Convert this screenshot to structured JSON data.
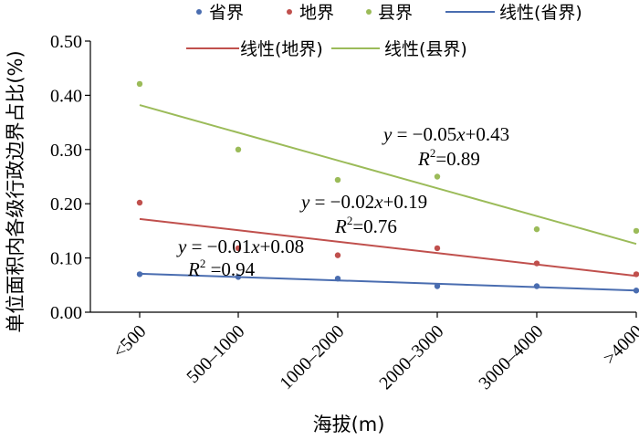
{
  "chart_data": {
    "type": "scatter",
    "title": "",
    "xlabel": "海拔(m)",
    "ylabel": "单位面积内各级行政边界占比(%)",
    "categories": [
      "<500",
      "500–1000",
      "1000–2000",
      "2000–3000",
      "3000–4000",
      ">4000"
    ],
    "y_ticks": [
      "0.00",
      "0.10",
      "0.20",
      "0.30",
      "0.40",
      "0.50"
    ],
    "ylim": [
      0,
      0.5
    ],
    "grid": false,
    "legend_position": "top",
    "series": [
      {
        "name": "省界",
        "color": "#4a6db0",
        "values": [
          0.07,
          0.065,
          0.062,
          0.048,
          0.048,
          0.04
        ]
      },
      {
        "name": "地界",
        "color": "#c0504d",
        "values": [
          0.202,
          0.118,
          0.105,
          0.118,
          0.09,
          0.07
        ]
      },
      {
        "name": "县界",
        "color": "#9bbb59",
        "values": [
          0.421,
          0.3,
          0.244,
          0.25,
          0.153,
          0.15
        ]
      }
    ],
    "trendlines": [
      {
        "name": "线性(省界)",
        "color": "#4a6db0",
        "start": 0.071,
        "end": 0.04,
        "eq_y": "y",
        "eq_eq": " = −0.01",
        "eq_x": "x",
        "eq_rest": "+0.08",
        "eq_R": "R",
        "eq_sup": "2",
        "eq_r2": " =0.94"
      },
      {
        "name": "线性(地界)",
        "color": "#c0504d",
        "start": 0.172,
        "end": 0.067,
        "eq_y": "y",
        "eq_eq": " = −0.02",
        "eq_x": "x",
        "eq_rest": "+0.19",
        "eq_R": "R",
        "eq_sup": "2",
        "eq_r2": "=0.76"
      },
      {
        "name": "线性(县界)",
        "color": "#9bbb59",
        "start": 0.382,
        "end": 0.126,
        "eq_y": "y",
        "eq_eq": " = −0.05",
        "eq_x": "x",
        "eq_rest": "+0.43",
        "eq_R": "R",
        "eq_sup": "2",
        "eq_r2": "=0.89"
      }
    ]
  }
}
